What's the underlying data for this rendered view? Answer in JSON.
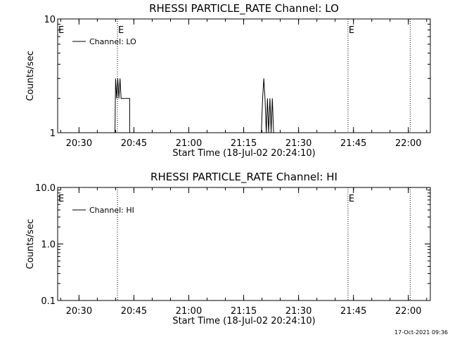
{
  "chart_data": [
    {
      "type": "line",
      "title": "RHESSI PARTICLE_RATE Channel: LO",
      "xlabel": "Start Time (18-Jul-02 20:24:10)",
      "ylabel": "Counts/sec",
      "y_scale": "log",
      "ylim": [
        1,
        10
      ],
      "y_ticks": [
        {
          "value": 1,
          "label": "1"
        },
        {
          "value": 10,
          "label": "10"
        }
      ],
      "x_ticks": [
        "20:30",
        "20:45",
        "21:00",
        "21:15",
        "21:30",
        "21:45",
        "22:00"
      ],
      "xlim": [
        "20:24:10",
        "22:06:00"
      ],
      "legend": {
        "label": "Channel: LO",
        "placement": "top-left"
      },
      "markers": [
        {
          "time": "20:40:30",
          "label": "E"
        },
        {
          "time": "21:43:30",
          "label": "E"
        },
        {
          "time": "22:00:30",
          "label": ""
        }
      ],
      "left_marker_label": "E",
      "series": [
        {
          "points": [
            [
              "20:39:50",
              1
            ],
            [
              "20:40:00",
              3
            ],
            [
              "20:40:18",
              2
            ],
            [
              "20:40:36",
              3
            ],
            [
              "20:40:54",
              2
            ],
            [
              "20:41:12",
              3
            ],
            [
              "20:41:30",
              2
            ],
            [
              "20:43:20",
              2
            ],
            [
              "20:43:20",
              2
            ],
            [
              "20:43:50",
              2
            ],
            [
              "20:43:50",
              1
            ],
            [
              "21:19:50",
              1
            ],
            [
              "21:20:10",
              2
            ],
            [
              "21:20:30",
              3
            ],
            [
              "21:20:50",
              2
            ],
            [
              "21:21:10",
              1
            ],
            [
              "21:21:30",
              2
            ],
            [
              "21:21:50",
              1
            ],
            [
              "21:22:10",
              2
            ],
            [
              "21:22:30",
              1
            ],
            [
              "21:22:50",
              2
            ],
            [
              "21:23:10",
              1
            ]
          ]
        }
      ]
    },
    {
      "type": "line",
      "title": "RHESSI PARTICLE_RATE Channel: HI",
      "xlabel": "Start Time (18-Jul-02 20:24:10)",
      "ylabel": "Counts/sec",
      "y_scale": "log",
      "ylim": [
        0.1,
        10
      ],
      "y_ticks": [
        {
          "value": 0.1,
          "label": "0.1"
        },
        {
          "value": 1,
          "label": "1.0"
        },
        {
          "value": 10,
          "label": "10.0"
        }
      ],
      "x_ticks": [
        "20:30",
        "20:45",
        "21:00",
        "21:15",
        "21:30",
        "21:45",
        "22:00"
      ],
      "xlim": [
        "20:24:10",
        "22:06:00"
      ],
      "legend": {
        "label": "Channel: HI",
        "placement": "top-left"
      },
      "markers": [
        {
          "time": "20:40:30",
          "label": ""
        },
        {
          "time": "21:43:30",
          "label": "E"
        },
        {
          "time": "22:00:30",
          "label": ""
        }
      ],
      "left_marker_label": "E",
      "series": [
        {
          "points": []
        }
      ]
    }
  ],
  "footer": {
    "timestamp": "17-Oct-2021 09:36"
  }
}
